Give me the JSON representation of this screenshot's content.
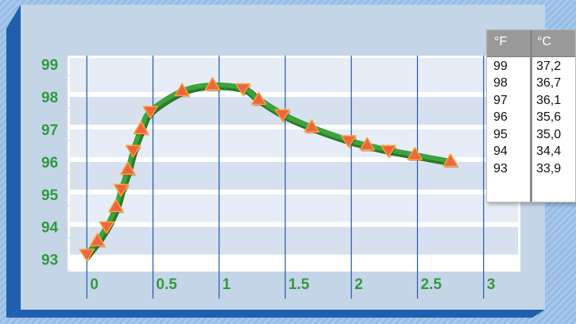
{
  "chart_data": {
    "type": "line",
    "x": [
      0,
      0.08,
      0.15,
      0.22,
      0.26,
      0.31,
      0.35,
      0.41,
      0.48,
      0.72,
      0.95,
      1.18,
      1.3,
      1.48,
      1.7,
      1.98,
      2.12,
      2.28,
      2.48,
      2.75
    ],
    "y": [
      93.1,
      93.5,
      93.95,
      94.55,
      95.1,
      95.7,
      96.3,
      96.95,
      97.5,
      98.12,
      98.3,
      98.2,
      97.85,
      97.4,
      97.0,
      96.6,
      96.45,
      96.3,
      96.15,
      95.95
    ],
    "markers": [
      "down",
      "up",
      "down",
      "up",
      "down",
      "up",
      "down",
      "up",
      "down",
      "up",
      "up",
      "down",
      "up",
      "down",
      "up",
      "down",
      "up",
      "down",
      "up",
      "up"
    ],
    "title": "",
    "xlabel": "",
    "ylabel": "",
    "xlim": [
      -0.05,
      3.2
    ],
    "ylim": [
      92.55,
      99.2
    ],
    "yticks": [
      93,
      94,
      95,
      96,
      97,
      98,
      99
    ],
    "xticks": [
      0,
      0.5,
      1,
      1.5,
      2,
      2.5,
      3
    ],
    "ytick_labels": [
      "93",
      "94",
      "95",
      "96",
      "97",
      "98",
      "99"
    ],
    "xtick_labels": [
      "0",
      "0.5",
      "1",
      "1.5",
      "2",
      "2.5",
      "3"
    ],
    "grid": true,
    "legend": "none",
    "colors": {
      "curve": "#3ea33e",
      "curve_edge": "#2a7a2a",
      "marker_fill": "#f0653f",
      "marker_light": "#f6a63a",
      "grid_vertical": "#1f5aa8",
      "plot_band_light": "#e6edf7",
      "plot_band_dark": "#d6e0ee",
      "panel": "#c5d5e8",
      "panel_edge_dark": "#1f5fae",
      "tick_text": "#2f9a3c"
    }
  },
  "conversion_table": {
    "header_f": "°F",
    "header_c": "°C",
    "rows": [
      {
        "f": "99",
        "c": "37,2"
      },
      {
        "f": "98",
        "c": "36,7"
      },
      {
        "f": "97",
        "c": "36,1"
      },
      {
        "f": "96",
        "c": "35,6"
      },
      {
        "f": "95",
        "c": "35,0"
      },
      {
        "f": "94",
        "c": "34,4"
      },
      {
        "f": "93",
        "c": "33,9"
      }
    ]
  }
}
